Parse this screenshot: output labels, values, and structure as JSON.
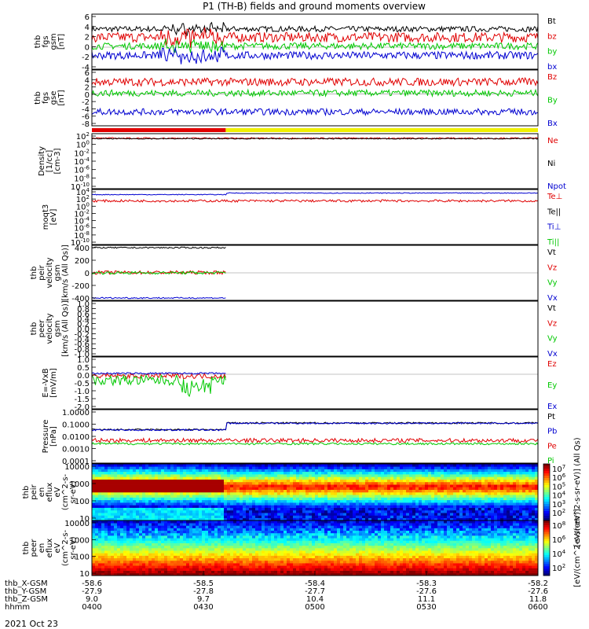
{
  "title": "P1 (TH-B) fields and ground moments overview",
  "colors": {
    "black": "#000000",
    "red": "#e00000",
    "green": "#00c800",
    "blue": "#0000d0",
    "yellow": "#f0f000"
  },
  "xaxis": {
    "ticks": [
      "0400",
      "0430",
      "0500",
      "0530",
      "0600"
    ],
    "row_labels": [
      "thb_X-GSM",
      "thb_Y-GSM",
      "thb_Z-GSM",
      "hhmm"
    ],
    "row_values": [
      [
        "-58.6",
        "-58.5",
        "-58.4",
        "-58.3",
        "-58.2"
      ],
      [
        "-27.9",
        "-27.8",
        "-27.7",
        "-27.6",
        "-27.6"
      ],
      [
        "9.0",
        "9.7",
        "10.4",
        "11.1",
        "11.8"
      ],
      [
        "0400",
        "0430",
        "0500",
        "0530",
        "0600"
      ]
    ],
    "date": "2021 Oct 23"
  },
  "chart_data": [
    {
      "type": "line",
      "id": "fgs_gsm",
      "ylabel": [
        "thb",
        "fgs",
        "gsm",
        "[nT]"
      ],
      "yticks": [
        "6",
        "4",
        "2",
        "0",
        "-2",
        "-4"
      ],
      "ylim": [
        -4,
        6
      ],
      "legend": [
        "Bt",
        "bz",
        "by",
        "bx"
      ],
      "series": [
        {
          "name": "Bt",
          "color": "#000000",
          "level": 3.3,
          "amp": 0.5
        },
        {
          "name": "bz",
          "color": "#e00000",
          "level": 1.8,
          "amp": 0.9
        },
        {
          "name": "by",
          "color": "#00c800",
          "level": 0.2,
          "amp": 0.6
        },
        {
          "name": "bx",
          "color": "#0000d0",
          "level": -1.5,
          "amp": 0.7
        }
      ]
    },
    {
      "type": "line",
      "id": "fgs_gse",
      "ylabel": [
        "thb",
        "fgs",
        "gse",
        "[nT]"
      ],
      "yticks": [
        "6",
        "4",
        "2",
        "0",
        "-2",
        "-4",
        "-6",
        "-8"
      ],
      "ylim": [
        -8,
        6
      ],
      "legend": [
        "Bz",
        "By",
        "Bx"
      ],
      "series": [
        {
          "name": "Bz",
          "color": "#e00000",
          "level": 3.0,
          "amp": 1.0
        },
        {
          "name": "By",
          "color": "#00c800",
          "level": 0.2,
          "amp": 0.8
        },
        {
          "name": "Bx",
          "color": "#0000d0",
          "level": -4.5,
          "amp": 0.8
        }
      ]
    },
    {
      "type": "line",
      "id": "density",
      "ylabel": [
        "Density",
        "[1/cc]",
        "[cm-3]"
      ],
      "yticks": [
        "10^2",
        "10^0",
        "10^-2",
        "10^-4",
        "10^-6",
        "10^-8",
        "10^-10"
      ],
      "ylim": [
        -10,
        2
      ],
      "log": true,
      "legend": [
        "Ne",
        "Ni",
        "Npot"
      ],
      "series": [
        {
          "name": "Ne",
          "color": "#e00000",
          "level": 1.0,
          "amp": 0.15
        },
        {
          "name": "Ni",
          "color": "#000000",
          "level": 0.9,
          "amp": 0.1
        }
      ]
    },
    {
      "type": "line",
      "id": "temperature",
      "ylabel": [
        "moqt3",
        "[eV]"
      ],
      "yticks": [
        "10^4",
        "10^2",
        "10^0",
        "10^-2",
        "10^-4",
        "10^-6",
        "10^-8",
        "10^-10"
      ],
      "ylim": [
        -10,
        4
      ],
      "log": true,
      "legend": [
        "Te⊥",
        "Te||",
        "Ti⊥",
        "Ti||"
      ],
      "series": [
        {
          "name": "Ti",
          "color": "#0000d0",
          "level": 2.7,
          "amp": 0.1,
          "step_at": 0.3,
          "step_to": 3.1
        },
        {
          "name": "Te",
          "color": "#e00000",
          "level": 1.1,
          "amp": 0.3
        }
      ]
    },
    {
      "type": "line",
      "id": "peir_velocity",
      "ylabel": [
        "thb",
        "peir",
        "velocity",
        "gsm",
        "[km/s (All Qs)]"
      ],
      "yticks": [
        "400",
        "200",
        "0",
        "-200",
        "-400"
      ],
      "ylim": [
        -400,
        400
      ],
      "legend": [
        "Vt",
        "Vz",
        "Vy",
        "Vx"
      ],
      "series": [
        {
          "name": "Vt",
          "color": "#000000",
          "level": 365,
          "amp": 10,
          "end": 0.3
        },
        {
          "name": "Vz",
          "color": "#e00000",
          "level": 5,
          "amp": 25,
          "end": 0.3
        },
        {
          "name": "Vy",
          "color": "#00c800",
          "level": 0,
          "amp": 20,
          "end": 0.3
        },
        {
          "name": "Vx",
          "color": "#0000d0",
          "level": -365,
          "amp": 10,
          "end": 0.3
        }
      ]
    },
    {
      "type": "line",
      "id": "peer_velocity",
      "ylabel": [
        "thb",
        "peer",
        "velocity",
        "gsm",
        "[km/s (All Qs)]"
      ],
      "yticks": [
        "1.0",
        "0.8",
        "0.6",
        "0.4",
        "0.2",
        "0.0",
        "-0.2",
        "-0.4",
        "-0.6",
        "-0.8",
        "-1.0"
      ],
      "ylim": [
        -1,
        1
      ],
      "legend": [
        "Vt",
        "Vz",
        "Vy",
        "Vx"
      ],
      "series": []
    },
    {
      "type": "line",
      "id": "efield",
      "ylabel": [
        "E=-VxB",
        "[mV/m]"
      ],
      "yticks": [
        "1.0",
        "0.5",
        "0.0",
        "-0.5",
        "-1.0",
        "-1.5",
        "-2.0"
      ],
      "ylim": [
        -2,
        1
      ],
      "legend": [
        "Ez",
        "Ey",
        "Ex"
      ],
      "series": [
        {
          "name": "Ez",
          "color": "#e00000",
          "level": -0.1,
          "amp": 0.15,
          "end": 0.3
        },
        {
          "name": "Ey",
          "color": "#00c800",
          "level": -0.35,
          "amp": 0.3,
          "end": 0.3
        },
        {
          "name": "Ex",
          "color": "#0000d0",
          "level": 0.05,
          "amp": 0.05,
          "end": 0.3
        }
      ]
    },
    {
      "type": "line",
      "id": "pressure",
      "ylabel": [
        "Pressure",
        "[nPa]"
      ],
      "yticks": [
        "1.0000",
        "0.1000",
        "0.0100",
        "0.0010",
        "0.0001"
      ],
      "ylim": [
        -4,
        0
      ],
      "log": true,
      "legend": [
        "Pt",
        "Pb",
        "Pe",
        "Pi"
      ],
      "series": [
        {
          "name": "Pt",
          "color": "#000000",
          "level": -1.5,
          "amp": 0.06,
          "step_at": 0.3,
          "step_to": -1.0
        },
        {
          "name": "Pb",
          "color": "#0000d0",
          "level": -1.52,
          "amp": 0.06,
          "step_at": 0.3,
          "step_to": -1.02
        },
        {
          "name": "Pe",
          "color": "#e00000",
          "level": -2.3,
          "amp": 0.15
        },
        {
          "name": "Pi",
          "color": "#00c800",
          "level": -2.55,
          "amp": 0.08
        }
      ]
    },
    {
      "type": "heatmap",
      "id": "peir_eflux",
      "ylabel": [
        "thb",
        "peir",
        "en",
        "eflux",
        "eV",
        "(cm^2-s-",
        "sr-eV)"
      ],
      "yticks": [
        "10000",
        "1000",
        "100",
        "10"
      ],
      "ylim": [
        5,
        30000
      ],
      "log": true,
      "colorbar_ticks": [
        "10^7",
        "10^6",
        "10^5",
        "10^4",
        "10^3",
        "10^2"
      ],
      "colorbar_label": "[eV/(cm^2-s-sr-eV)] (All Qs)"
    },
    {
      "type": "heatmap",
      "id": "peer_eflux",
      "ylabel": [
        "thb",
        "peer",
        "en",
        "eflux",
        "eV",
        "(cm^2-s-",
        "sr-eV)"
      ],
      "yticks": [
        "10000",
        "1000",
        "100",
        "10"
      ],
      "ylim": [
        5,
        30000
      ],
      "log": true,
      "colorbar_ticks": [
        "10^8",
        "10^6",
        "10^4",
        "10^2"
      ],
      "colorbar_label": "[eV/(cm^2-s-sr-eV)]"
    }
  ],
  "mode_bar": {
    "red_until": 0.3
  }
}
